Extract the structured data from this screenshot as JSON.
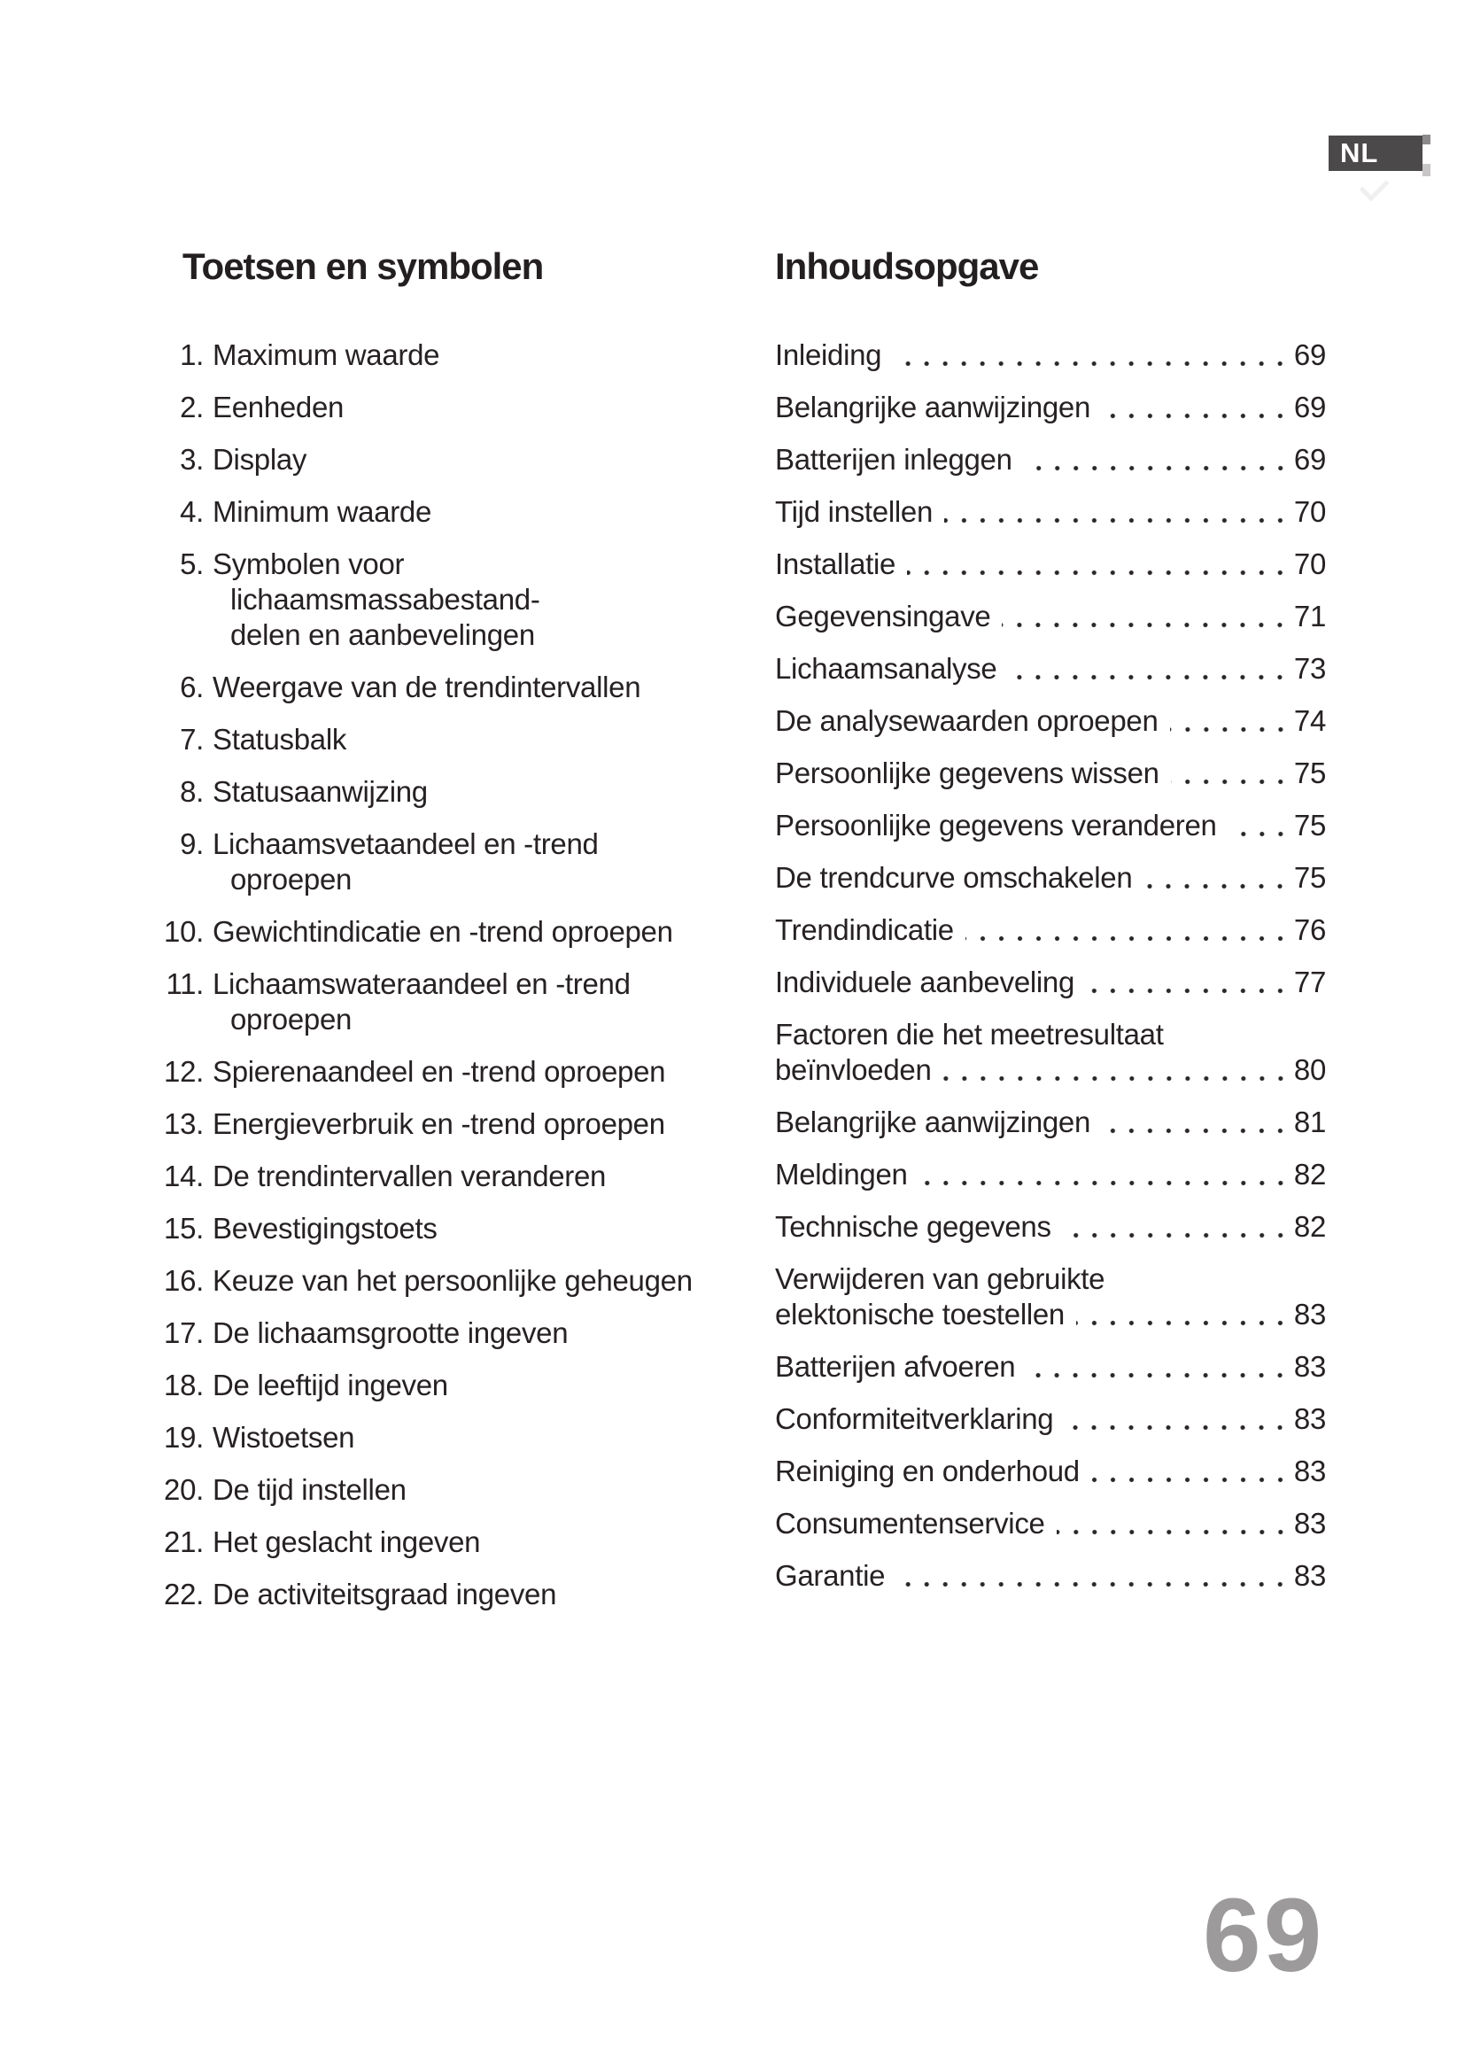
{
  "badge": {
    "label": "NL"
  },
  "page": {
    "number": "69"
  },
  "left_column": {
    "heading": "Toetsen en symbolen",
    "items": [
      {
        "num": "1.",
        "text": "Maximum waarde"
      },
      {
        "num": "2.",
        "text": "Eenheden"
      },
      {
        "num": "3.",
        "text": "Display"
      },
      {
        "num": "4.",
        "text": "Minimum waarde"
      },
      {
        "num": "5.",
        "text": "Symbolen voor lichaamsmassabestand-\ndelen en aanbevelingen"
      },
      {
        "num": "6.",
        "text": "Weergave van de trendintervallen"
      },
      {
        "num": "7.",
        "text": "Statusbalk"
      },
      {
        "num": "8.",
        "text": "Statusaanwijzing"
      },
      {
        "num": "9.",
        "text": "Lichaamsvetaandeel en -trend oproepen"
      },
      {
        "num": "10.",
        "text": "Gewichtindicatie en -trend oproepen"
      },
      {
        "num": "11.",
        "text": "Lichaamswateraandeel en -trend\noproepen"
      },
      {
        "num": "12.",
        "text": "Spierenaandeel en -trend oproepen"
      },
      {
        "num": "13.",
        "text": "Energieverbruik en -trend oproepen"
      },
      {
        "num": "14.",
        "text": "De trendintervallen veranderen"
      },
      {
        "num": "15.",
        "text": "Bevestigingstoets"
      },
      {
        "num": "16.",
        "text": "Keuze van het persoonlijke geheugen"
      },
      {
        "num": "17.",
        "text": "De lichaamsgrootte ingeven"
      },
      {
        "num": "18.",
        "text": "De leeftijd ingeven"
      },
      {
        "num": "19.",
        "text": "Wistoetsen"
      },
      {
        "num": "20.",
        "text": "De tijd instellen"
      },
      {
        "num": "21.",
        "text": "Het geslacht ingeven"
      },
      {
        "num": "22.",
        "text": "De activiteitsgraad ingeven"
      }
    ]
  },
  "right_column": {
    "heading": "Inhoudsopgave",
    "entries": [
      {
        "lines": [
          "Inleiding"
        ],
        "page": "69"
      },
      {
        "lines": [
          "Belangrijke aanwijzingen"
        ],
        "page": "69"
      },
      {
        "lines": [
          "Batterijen inleggen"
        ],
        "page": "69"
      },
      {
        "lines": [
          "Tijd instellen"
        ],
        "page": "70"
      },
      {
        "lines": [
          "Installatie"
        ],
        "page": "70"
      },
      {
        "lines": [
          "Gegevensingave"
        ],
        "page": "71"
      },
      {
        "lines": [
          "Lichaamsanalyse"
        ],
        "page": "73"
      },
      {
        "lines": [
          "De analysewaarden oproepen"
        ],
        "page": "74"
      },
      {
        "lines": [
          "Persoonlijke gegevens wissen"
        ],
        "page": "75"
      },
      {
        "lines": [
          "Persoonlijke gegevens veranderen"
        ],
        "page": "75"
      },
      {
        "lines": [
          "De trendcurve omschakelen"
        ],
        "page": "75"
      },
      {
        "lines": [
          "Trendindicatie"
        ],
        "page": "76"
      },
      {
        "lines": [
          "Individuele aanbeveling"
        ],
        "page": "77"
      },
      {
        "lines": [
          "Factoren die het meetresultaat",
          "beïnvloeden"
        ],
        "page": "80"
      },
      {
        "lines": [
          "Belangrijke aanwijzingen"
        ],
        "page": "81"
      },
      {
        "lines": [
          "Meldingen"
        ],
        "page": "82"
      },
      {
        "lines": [
          "Technische gegevens"
        ],
        "page": "82"
      },
      {
        "lines": [
          "Verwijderen van gebruikte",
          "elektonische toestellen"
        ],
        "page": "83"
      },
      {
        "lines": [
          "Batterijen afvoeren"
        ],
        "page": "83"
      },
      {
        "lines": [
          "Conformiteitverklaring"
        ],
        "page": "83"
      },
      {
        "lines": [
          "Reiniging en onderhoud"
        ],
        "page": "83"
      },
      {
        "lines": [
          "Consumentenservice"
        ],
        "page": "83"
      },
      {
        "lines": [
          "Garantie"
        ],
        "page": "83"
      }
    ]
  },
  "colors": {
    "text": "#262122",
    "badge_background": "#4c494a",
    "badge_text": "#ffffff",
    "page_number_gray": "#9c9a9a"
  }
}
